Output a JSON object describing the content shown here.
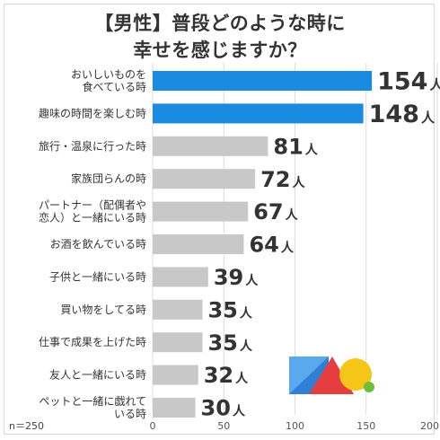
{
  "chart_data": {
    "type": "bar",
    "orientation": "horizontal",
    "title_lines": [
      "【男性】普段どのような時に",
      "幸せを感じますか？"
    ],
    "categories": [
      [
        "おいしいものを",
        "食べている時"
      ],
      [
        "趣味の時間を楽しむ時"
      ],
      [
        "旅行・温泉に行った時"
      ],
      [
        "家族団らんの時"
      ],
      [
        "パートナー（配偶者や",
        "恋人）と一緒にいる時"
      ],
      [
        "お酒を飲んでいる時"
      ],
      [
        "子供と一緒にいる時"
      ],
      [
        "買い物をしてる時"
      ],
      [
        "仕事で成果を上げた時"
      ],
      [
        "友人と一緒にいる時"
      ],
      [
        "ペットと一緒に戯れて",
        "いる時"
      ]
    ],
    "values": [
      154,
      148,
      81,
      72,
      67,
      64,
      39,
      35,
      35,
      32,
      30
    ],
    "value_unit": "人",
    "highlight_count": 2,
    "xlim": [
      0,
      200
    ],
    "xticks": [
      0,
      50,
      100,
      150,
      200
    ],
    "grid": "vertical",
    "sample_note": "n＝250",
    "colors": {
      "highlight": "#1a8be0",
      "highlight_label": "#1a6fb8",
      "normal": "#c8c8c8",
      "label": "#333333",
      "grid": "#dcdcdc"
    }
  }
}
